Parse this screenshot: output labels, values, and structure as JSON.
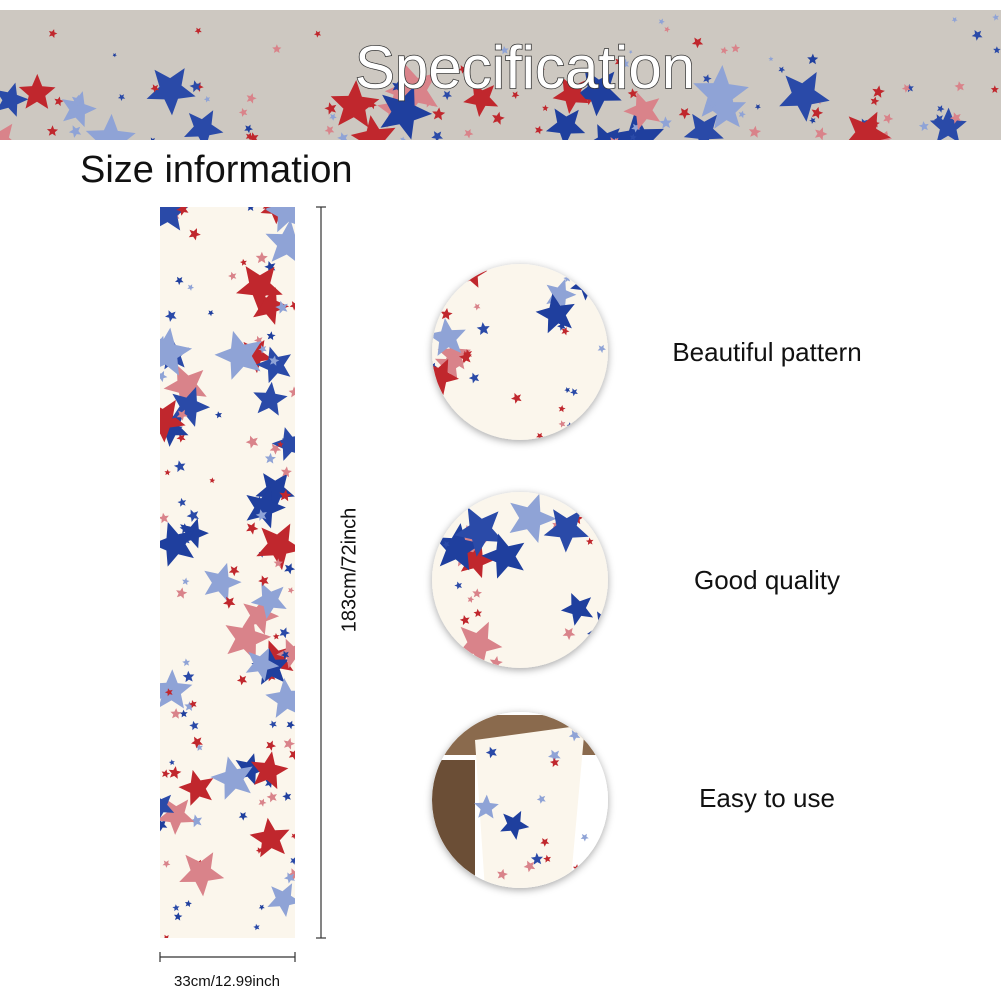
{
  "header": {
    "title": "Specification"
  },
  "size_section": {
    "title": "Size information",
    "length_label": "183cm/72inch",
    "width_label": "33cm/12.99inch"
  },
  "features": [
    {
      "label": "Beautiful pattern"
    },
    {
      "label": "Good quality"
    },
    {
      "label": "Easy to use"
    }
  ]
}
